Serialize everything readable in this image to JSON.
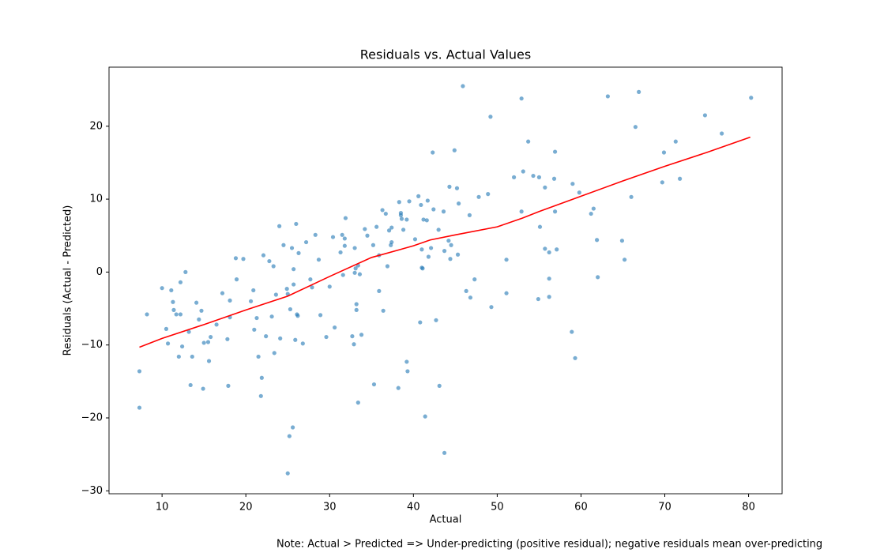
{
  "chart_data": {
    "type": "scatter",
    "title": "Residuals vs. Actual Values",
    "xlabel": "Actual",
    "ylabel": "Residuals (Actual - Predicted)",
    "note": "Note: Actual > Predicted => Under-predicting (positive residual); negative residuals mean over-predicting",
    "xlim": [
      3.67,
      84.0
    ],
    "ylim": [
      -30.4,
      28.1
    ],
    "xticks": [
      10,
      20,
      30,
      40,
      50,
      60,
      70,
      80
    ],
    "yticks": [
      {
        "value": -30,
        "label": "−30"
      },
      {
        "value": -20,
        "label": "−20"
      },
      {
        "value": -10,
        "label": "−10"
      },
      0,
      10,
      20
    ],
    "x": [
      7.3,
      7.3,
      8.2,
      10.0,
      10.5,
      10.7,
      11.1,
      11.3,
      11.4,
      11.7,
      12.0,
      12.2,
      12.2,
      12.4,
      12.8,
      13.2,
      13.4,
      13.6,
      14.1,
      14.4,
      14.7,
      14.9,
      15.0,
      15.5,
      15.6,
      15.8,
      16.5,
      17.2,
      17.8,
      17.9,
      18.1,
      18.1,
      18.8,
      18.9,
      19.7,
      20.6,
      20.9,
      21.0,
      21.3,
      21.5,
      21.8,
      21.9,
      22.1,
      22.4,
      22.8,
      23.1,
      23.3,
      23.4,
      23.6,
      24.0,
      24.1,
      24.5,
      24.9,
      25.0,
      25.0,
      25.2,
      25.3,
      25.5,
      25.6,
      25.7,
      25.7,
      25.9,
      26.0,
      26.1,
      26.2,
      26.3,
      26.8,
      27.2,
      27.7,
      27.9,
      28.3,
      28.7,
      28.9,
      29.6,
      30.0,
      30.4,
      30.6,
      31.3,
      31.5,
      31.6,
      31.8,
      31.8,
      31.9,
      32.7,
      32.9,
      33.0,
      33.0,
      33.1,
      33.2,
      33.2,
      33.4,
      33.4,
      33.6,
      33.8,
      34.2,
      34.5,
      35.2,
      35.3,
      35.6,
      35.9,
      35.9,
      36.3,
      36.4,
      36.7,
      36.9,
      37.1,
      37.3,
      37.4,
      37.4,
      38.2,
      38.3,
      38.5,
      38.5,
      38.6,
      38.8,
      39.2,
      39.2,
      39.3,
      39.5,
      40.2,
      40.6,
      40.8,
      40.9,
      41.0,
      41.0,
      41.1,
      41.2,
      41.4,
      41.6,
      41.7,
      41.8,
      42.1,
      42.3,
      42.4,
      42.7,
      43.0,
      43.1,
      43.6,
      43.7,
      43.7,
      44.2,
      44.3,
      44.4,
      44.5,
      44.9,
      45.2,
      45.3,
      45.4,
      45.9,
      46.3,
      46.7,
      46.8,
      47.3,
      47.8,
      48.9,
      49.2,
      49.3,
      51.1,
      51.1,
      52.0,
      52.9,
      52.9,
      53.1,
      53.7,
      54.3,
      54.9,
      55.0,
      55.1,
      55.7,
      55.7,
      56.2,
      56.2,
      56.2,
      56.8,
      56.9,
      56.9,
      57.1,
      58.9,
      59.0,
      59.3,
      59.8,
      61.2,
      61.5,
      61.9,
      62.0,
      63.2,
      64.9,
      65.2,
      66.0,
      66.5,
      66.9,
      69.7,
      69.9,
      71.3,
      71.8,
      74.8,
      76.8,
      80.3
    ],
    "series": [
      {
        "color": "#1f77b4",
        "values": [
          -18.6,
          -13.6,
          -5.8,
          -2.2,
          -7.8,
          -9.8,
          -2.5,
          -4.1,
          -5.2,
          -5.8,
          -11.6,
          -5.8,
          -1.4,
          -10.2,
          0.0,
          -8.2,
          -15.5,
          -11.6,
          -4.2,
          -6.5,
          -5.3,
          -16.0,
          -9.7,
          -9.6,
          -12.2,
          -8.9,
          -7.2,
          -2.9,
          -9.2,
          -15.6,
          -3.9,
          -6.2,
          1.9,
          -1.0,
          1.8,
          -4.0,
          -2.5,
          -7.9,
          -6.3,
          -11.6,
          -17.0,
          -14.5,
          2.3,
          -8.8,
          1.5,
          -6.1,
          0.8,
          -11.1,
          -3.1,
          6.3,
          -9.1,
          3.7,
          -2.3,
          -3.0,
          -27.6,
          -22.5,
          -5.1,
          3.3,
          -21.3,
          0.4,
          -1.7,
          -9.3,
          6.6,
          -5.8,
          -6.0,
          2.6,
          -9.8,
          4.1,
          -1.0,
          -2.1,
          5.1,
          1.7,
          -5.9,
          -8.9,
          -2.0,
          4.8,
          -7.6,
          2.7,
          5.1,
          -0.4,
          4.6,
          3.6,
          7.4,
          -8.8,
          -9.9,
          3.3,
          -0.1,
          0.5,
          -4.4,
          -5.2,
          0.9,
          -17.9,
          -0.3,
          -8.6,
          5.9,
          5.0,
          3.7,
          -15.4,
          6.2,
          2.3,
          -2.6,
          8.5,
          -5.3,
          8.0,
          0.8,
          5.7,
          3.7,
          6.1,
          4.1,
          -15.9,
          9.6,
          7.8,
          8.1,
          7.3,
          5.8,
          7.2,
          -12.3,
          -13.6,
          9.7,
          4.5,
          10.4,
          -6.9,
          9.2,
          3.1,
          0.6,
          0.5,
          7.2,
          -19.8,
          7.1,
          9.8,
          2.1,
          3.3,
          16.4,
          8.6,
          -6.6,
          5.8,
          -15.6,
          8.3,
          -24.8,
          2.9,
          4.3,
          11.7,
          1.8,
          3.7,
          16.7,
          11.5,
          2.4,
          9.4,
          25.5,
          -2.6,
          7.8,
          -3.5,
          -1.0,
          10.3,
          10.7,
          21.3,
          -4.8,
          1.7,
          -2.9,
          13.0,
          8.3,
          23.8,
          13.8,
          17.9,
          13.2,
          -3.7,
          13.0,
          6.2,
          11.6,
          3.2,
          2.7,
          -0.9,
          -3.4,
          12.8,
          16.5,
          8.3,
          3.1,
          -8.2,
          12.1,
          -11.8,
          10.9,
          8.0,
          8.7,
          4.4,
          -0.7,
          24.1,
          4.3,
          1.7,
          10.3,
          19.9,
          24.7,
          12.3,
          16.4,
          17.9,
          12.8,
          21.5,
          19.0,
          23.9
        ]
      }
    ],
    "trend": {
      "color": "#ff0000",
      "x": [
        7.3,
        10,
        15,
        20,
        25,
        30,
        35,
        40,
        42,
        45,
        50,
        53,
        55,
        60,
        65,
        70,
        75,
        80.2
      ],
      "values": [
        -10.3,
        -9.1,
        -7.2,
        -5.2,
        -3.3,
        -0.6,
        2.0,
        3.6,
        4.4,
        5.1,
        6.2,
        7.4,
        8.3,
        10.4,
        12.5,
        14.5,
        16.4,
        18.5
      ]
    }
  }
}
